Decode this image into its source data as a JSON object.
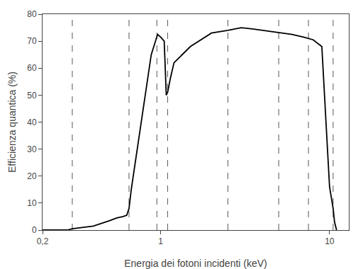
{
  "chart_data": {
    "type": "line",
    "xlabel": "Energia dei fotoni incidenti (keV)",
    "ylabel": "Efficienza quantica (%)",
    "log": "x",
    "grid": false,
    "x": [
      0.2,
      0.28,
      0.3,
      0.4,
      0.5,
      0.55,
      0.6,
      0.63,
      0.63,
      0.65,
      0.67,
      0.88,
      0.95,
      0.96,
      0.96,
      1.0,
      1.05,
      1.05,
      1.08,
      1.08,
      1.1,
      1.1,
      1.14,
      1.2,
      1.5,
      2.0,
      2.5,
      3.0,
      3.0,
      3.5,
      4.0,
      5.0,
      6.0,
      6.0,
      7.0,
      8.0,
      9.0,
      10.0,
      10.5,
      10.7,
      11.0
    ],
    "values": [
      0.0,
      0.0,
      0.5,
      1.5,
      3.5,
      4.5,
      5.0,
      5.5,
      5.5,
      8.0,
      15.0,
      65.0,
      72.0,
      72.5,
      72.5,
      71.5,
      70.0,
      70.0,
      50.0,
      50.0,
      51.0,
      51.0,
      56.0,
      62.0,
      68.0,
      73.0,
      74.0,
      75.0,
      75.0,
      74.5,
      74.0,
      73.0,
      72.5,
      72.5,
      71.5,
      70.5,
      68.0,
      16.0,
      8.0,
      3.0,
      0.0
    ],
    "color": "#000000",
    "vlines": {
      "values": [
        0.3,
        0.65,
        0.95,
        1.1,
        2.5,
        5.0,
        7.5,
        10.5
      ],
      "color": "#555555",
      "line_style": "dashed"
    },
    "xlim": [
      0.199986,
      13.0017
    ],
    "xticks": [
      {
        "value": 0.2,
        "label": "0,2"
      },
      1,
      10
    ],
    "ylim": [
      0,
      80
    ],
    "yticks": [
      0,
      10,
      20,
      30,
      40,
      50,
      60,
      70,
      80
    ]
  }
}
